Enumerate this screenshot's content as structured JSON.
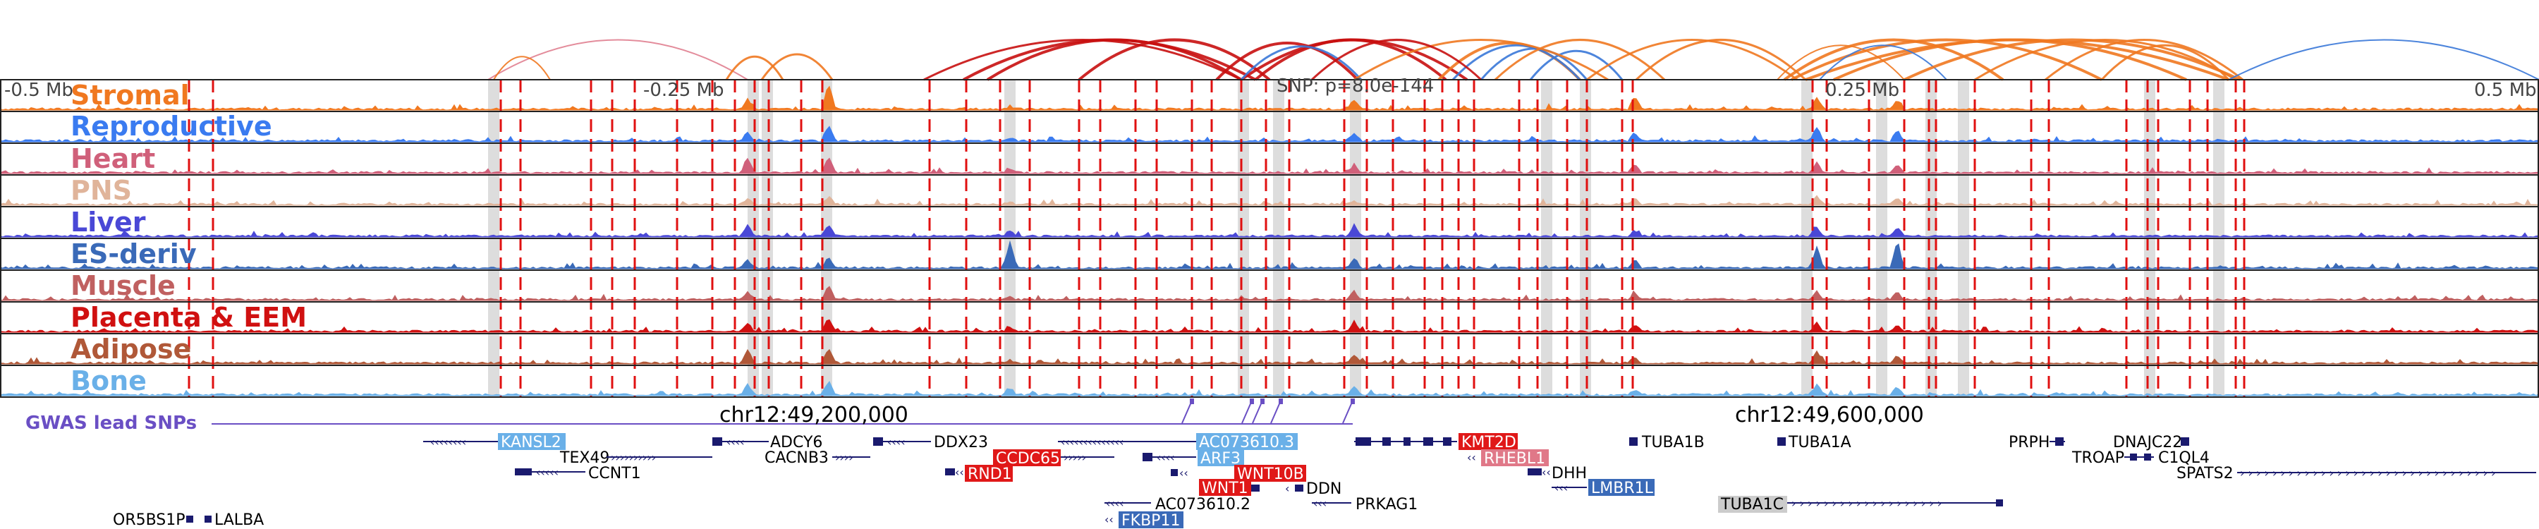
{
  "colors": {
    "highlight": "#dddddd",
    "snp_line": "#e01010",
    "gwas": "#6a4fc4",
    "gene": "#1a1a6e",
    "arc_orange": "#f07820",
    "arc_red": "#c81010",
    "arc_blue": "#3a78d8",
    "arc_pink": "#e08090"
  },
  "axis": {
    "left_label": "-0.5 Mb",
    "mid_left_label": "-0.25 Mb",
    "snp_label": "SNP: p=8.0e-144",
    "mid_right_label": "0.25 Mb",
    "right_label": "0.5 Mb"
  },
  "tracks": [
    {
      "label": "Stromal",
      "color": "#f07820"
    },
    {
      "label": "Reproductive",
      "color": "#3a7bf0"
    },
    {
      "label": "Heart",
      "color": "#d0607a"
    },
    {
      "label": "PNS",
      "color": "#e0b49a"
    },
    {
      "label": "Liver",
      "color": "#4a48d6"
    },
    {
      "label": "ES-deriv",
      "color": "#3a6ab8"
    },
    {
      "label": "Muscle",
      "color": "#c06060"
    },
    {
      "label": "Placenta & EEM",
      "color": "#d01010"
    },
    {
      "label": "Adipose",
      "color": "#b05838"
    },
    {
      "label": "Bone",
      "color": "#6ab0e8"
    }
  ],
  "gwas": {
    "label": "GWAS lead SNPs"
  },
  "coords": {
    "left": "chr12:49,200,000",
    "right": "chr12:49,600,000"
  },
  "genes": [
    {
      "name": "KANSL2",
      "box": "#6ab0e8"
    },
    {
      "name": "TEX49",
      "box": ""
    },
    {
      "name": "CCNT1",
      "box": ""
    },
    {
      "name": "ADCY6",
      "box": ""
    },
    {
      "name": "CACNB3",
      "box": ""
    },
    {
      "name": "DDX23",
      "box": ""
    },
    {
      "name": "CCDC65",
      "box": "#e01818"
    },
    {
      "name": "RND1",
      "box": "#e01818"
    },
    {
      "name": "AC073610.3",
      "box": "#6ab0e8"
    },
    {
      "name": "ARF3",
      "box": "#6ab0e8"
    },
    {
      "name": "WNT10B",
      "box": "#e01818"
    },
    {
      "name": "WNT1",
      "box": "#e01818"
    },
    {
      "name": "DDN",
      "box": ""
    },
    {
      "name": "AC073610.2",
      "box": ""
    },
    {
      "name": "FKBP11",
      "box": "#3a6ab8"
    },
    {
      "name": "PRKAG1",
      "box": ""
    },
    {
      "name": "KMT2D",
      "box": "#e01818"
    },
    {
      "name": "RHEBL1",
      "box": "#e07888"
    },
    {
      "name": "DHH",
      "box": ""
    },
    {
      "name": "LMBR1L",
      "box": "#3a6ab8"
    },
    {
      "name": "TUBA1B",
      "box": ""
    },
    {
      "name": "TUBA1A",
      "box": ""
    },
    {
      "name": "TUBA1C",
      "box": "#cccccc"
    },
    {
      "name": "PRPH",
      "box": ""
    },
    {
      "name": "DNAJC22",
      "box": ""
    },
    {
      "name": "TROAP",
      "box": ""
    },
    {
      "name": "C1QL4",
      "box": ""
    },
    {
      "name": "SPATS2",
      "box": ""
    },
    {
      "name": "OR5BS1P",
      "box": ""
    },
    {
      "name": "LALBA",
      "box": ""
    }
  ]
}
